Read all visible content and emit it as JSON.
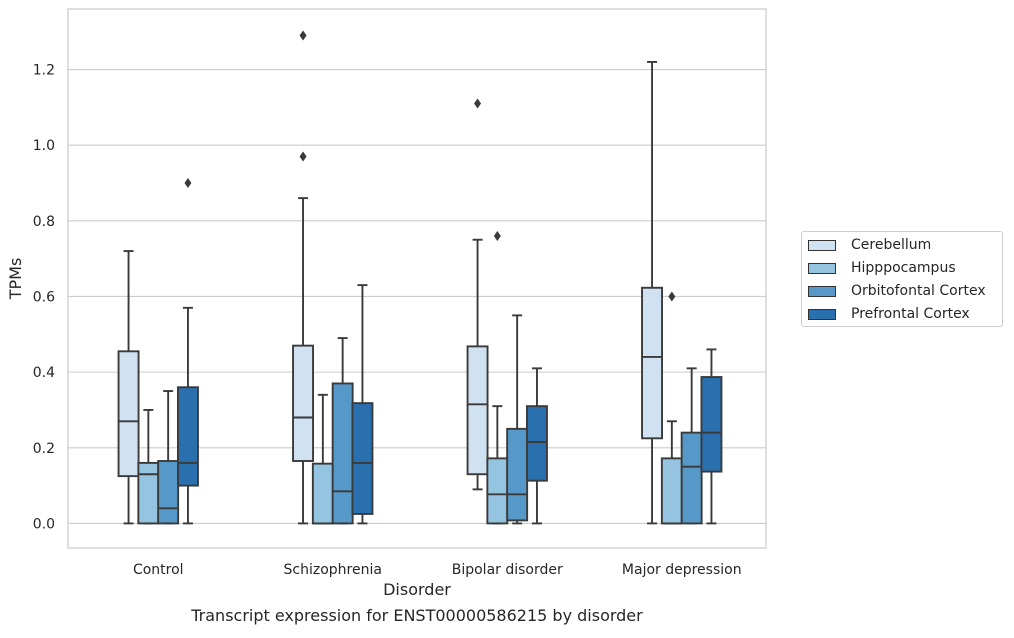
{
  "caption": "Transcript expression for ENST00000586215 by disorder",
  "chart_data": {
    "type": "box",
    "xlabel": "Disorder",
    "ylabel": "TPMs",
    "ylim": [
      -0.065,
      1.36
    ],
    "yticks": [
      "0.0",
      "0.2",
      "0.4",
      "0.6",
      "0.8",
      "1.0",
      "1.2"
    ],
    "ytick_values": [
      0.0,
      0.2,
      0.4,
      0.6,
      0.8,
      1.0,
      1.2
    ],
    "grid": "horizontal",
    "legend_position": "outside-right",
    "categories": [
      "Control",
      "Schizophrenia",
      "Bipolar disorder",
      "Major depression"
    ],
    "series": [
      {
        "name": "Cerebellum",
        "color": "#d0e1f2",
        "boxes": [
          {
            "whislo": 0.0,
            "q1": 0.125,
            "med": 0.27,
            "q3": 0.455,
            "whishi": 0.72,
            "fliers": []
          },
          {
            "whislo": 0.0,
            "q1": 0.165,
            "med": 0.28,
            "q3": 0.47,
            "whishi": 0.86,
            "fliers": [
              0.97,
              1.29
            ]
          },
          {
            "whislo": 0.09,
            "q1": 0.13,
            "med": 0.315,
            "q3": 0.468,
            "whishi": 0.75,
            "fliers": [
              1.11
            ]
          },
          {
            "whislo": 0.0,
            "q1": 0.225,
            "med": 0.44,
            "q3": 0.623,
            "whishi": 1.22,
            "fliers": []
          }
        ]
      },
      {
        "name": "Hipppocampus",
        "color": "#94c4df",
        "boxes": [
          {
            "whislo": 0.0,
            "q1": 0.0,
            "med": 0.13,
            "q3": 0.16,
            "whishi": 0.3,
            "fliers": []
          },
          {
            "whislo": 0.0,
            "q1": 0.0,
            "med": 0.0,
            "q3": 0.158,
            "whishi": 0.34,
            "fliers": []
          },
          {
            "whislo": 0.0,
            "q1": 0.0,
            "med": 0.077,
            "q3": 0.172,
            "whishi": 0.31,
            "fliers": [
              0.76
            ]
          },
          {
            "whislo": 0.0,
            "q1": 0.0,
            "med": 0.0,
            "q3": 0.172,
            "whishi": 0.27,
            "fliers": [
              0.6
            ]
          }
        ]
      },
      {
        "name": "Orbitofontal Cortex",
        "color": "#5698c8",
        "boxes": [
          {
            "whislo": 0.0,
            "q1": 0.0,
            "med": 0.04,
            "q3": 0.165,
            "whishi": 0.35,
            "fliers": []
          },
          {
            "whislo": 0.0,
            "q1": 0.0,
            "med": 0.085,
            "q3": 0.37,
            "whishi": 0.49,
            "fliers": []
          },
          {
            "whislo": 0.0,
            "q1": 0.008,
            "med": 0.077,
            "q3": 0.25,
            "whishi": 0.55,
            "fliers": []
          },
          {
            "whislo": 0.0,
            "q1": 0.0,
            "med": 0.15,
            "q3": 0.24,
            "whishi": 0.41,
            "fliers": []
          }
        ]
      },
      {
        "name": "Prefrontal Cortex",
        "color": "#2a6fae",
        "boxes": [
          {
            "whislo": 0.0,
            "q1": 0.1,
            "med": 0.16,
            "q3": 0.36,
            "whishi": 0.57,
            "fliers": [
              0.9
            ]
          },
          {
            "whislo": 0.0,
            "q1": 0.025,
            "med": 0.16,
            "q3": 0.318,
            "whishi": 0.63,
            "fliers": []
          },
          {
            "whislo": 0.0,
            "q1": 0.113,
            "med": 0.215,
            "q3": 0.31,
            "whishi": 0.41,
            "fliers": []
          },
          {
            "whislo": 0.0,
            "q1": 0.137,
            "med": 0.24,
            "q3": 0.387,
            "whishi": 0.46,
            "fliers": []
          }
        ]
      }
    ]
  }
}
